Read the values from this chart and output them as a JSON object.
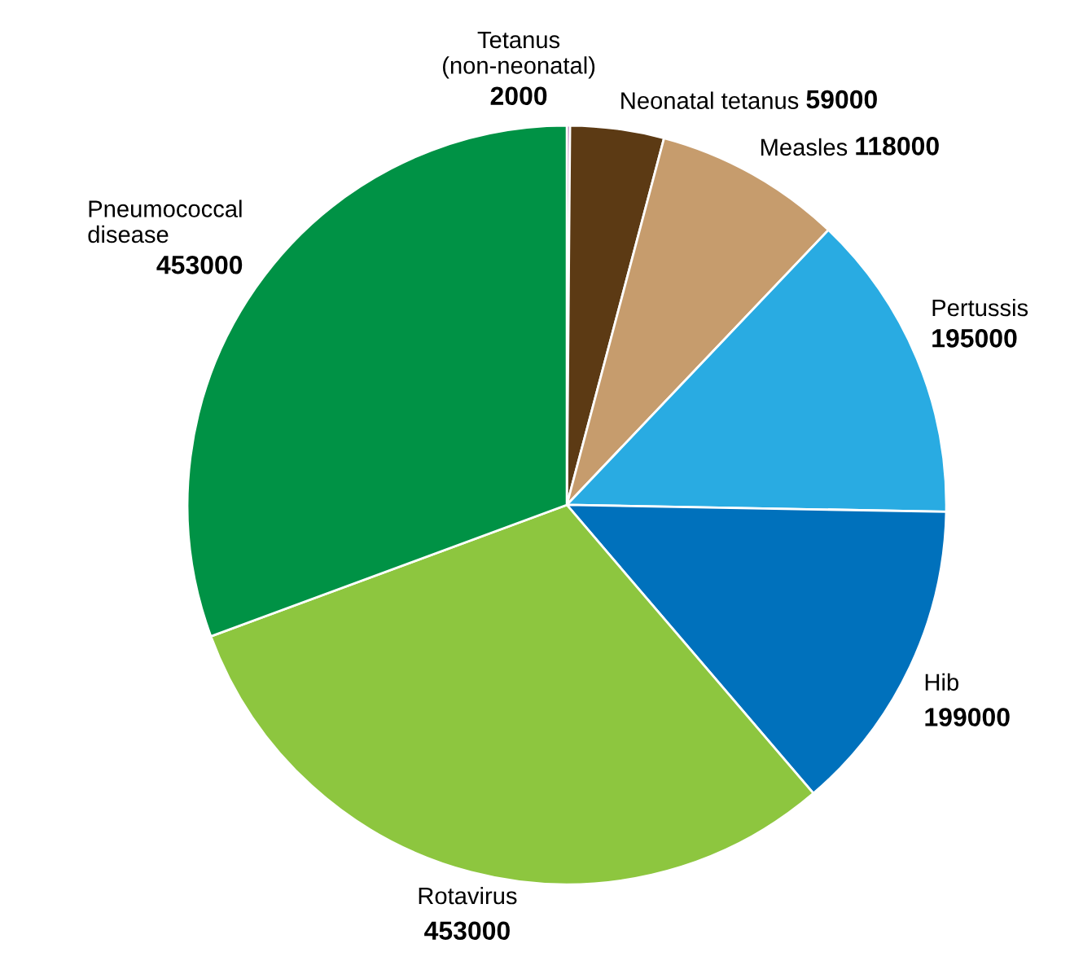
{
  "chart_data": {
    "type": "pie",
    "categories": [
      "Tetanus\n(non-neonatal)",
      "Neonatal tetanus",
      "Measles",
      "Pertussis",
      "Hib",
      "Rotavirus",
      "Pneumococcal\ndisease"
    ],
    "values": [
      2000,
      59000,
      118000,
      195000,
      199000,
      453000,
      453000
    ],
    "colors": [
      "#8e2a8e",
      "#5c3a14",
      "#c69c6d",
      "#29abe2",
      "#0071bc",
      "#8dc63f",
      "#009245"
    ],
    "data_labels": true
  }
}
